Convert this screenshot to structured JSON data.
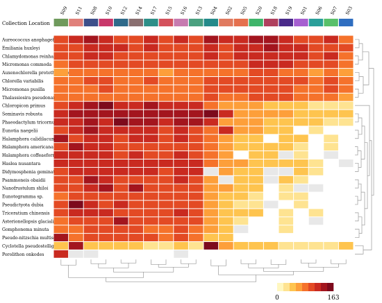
{
  "chart_data": {
    "type": "heatmap",
    "title": "",
    "annotation_row_label": "Collection Location",
    "columns": [
      "S09",
      "S11",
      "S08",
      "S10",
      "S12",
      "S14",
      "S17",
      "S15",
      "S16",
      "S13",
      "S04",
      "S02",
      "S05",
      "S20",
      "S18",
      "S19",
      "S01",
      "S06",
      "S07",
      "S03"
    ],
    "column_colors": [
      "#6f9a5c",
      "#e0807a",
      "#3d4f8a",
      "#c8386a",
      "#2f6a8a",
      "#8a6f70",
      "#2e8f88",
      "#d4515c",
      "#c77bb0",
      "#4aa07f",
      "#248a8a",
      "#e07a5f",
      "#e5704e",
      "#3fb56a",
      "#b0405e",
      "#4a2a8a",
      "#a65fd0",
      "#2a9f9a",
      "#58c06a",
      "#2f6ec0"
    ],
    "rows": [
      "Aureococcus anophagefferens",
      "Emiliania huxleyi",
      "Chlamydomonas reinhardtii",
      "Micromonas commoda",
      "Auxenochlorella protothecoides",
      "Chlorella variabilis",
      "Micromonas pusilla",
      "Thalassiosira pseudonana",
      "Chloropicon primus",
      "Seminavis robusta",
      "Phaeodactylum tricornutum",
      "Eunotia naegelii",
      "Halamphora calidilacuna",
      "Halamphora americana",
      "Halamphora coffeaeformis",
      "Haslea nusantara",
      "Didymosphenia geminata",
      "Psammoneis obaidii",
      "Nanofrustulum shiloi",
      "Eunotogramma sp.",
      "Pseudictyota dubia",
      "Triceratium chinensis",
      "Asterionellopsis glacialis",
      "Gomphonema minuta",
      "Pseudo-nitzschia multiseries",
      "Cyclotella pseudostelligera",
      "Porolithon onkodes"
    ],
    "values": [
      [
        95,
        110,
        128,
        118,
        108,
        105,
        110,
        98,
        112,
        106,
        130,
        118,
        122,
        140,
        135,
        110,
        108,
        98,
        112,
        90
      ],
      [
        100,
        105,
        115,
        118,
        110,
        108,
        112,
        100,
        108,
        105,
        115,
        108,
        112,
        120,
        128,
        118,
        112,
        100,
        108,
        92
      ],
      [
        95,
        100,
        110,
        112,
        105,
        102,
        108,
        98,
        105,
        100,
        112,
        108,
        110,
        118,
        122,
        120,
        110,
        100,
        110,
        90
      ],
      [
        90,
        92,
        100,
        102,
        98,
        95,
        100,
        92,
        98,
        95,
        108,
        102,
        105,
        110,
        115,
        110,
        102,
        95,
        100,
        85
      ],
      [
        70,
        75,
        82,
        80,
        78,
        75,
        80,
        72,
        78,
        75,
        88,
        82,
        85,
        92,
        95,
        88,
        80,
        72,
        80,
        65
      ],
      [
        82,
        85,
        92,
        95,
        90,
        88,
        92,
        85,
        90,
        88,
        100,
        95,
        98,
        105,
        108,
        102,
        92,
        85,
        95,
        78
      ],
      [
        80,
        82,
        90,
        92,
        88,
        85,
        90,
        82,
        88,
        85,
        98,
        92,
        95,
        102,
        105,
        100,
        90,
        82,
        92,
        75
      ],
      [
        78,
        80,
        88,
        85,
        82,
        80,
        85,
        78,
        82,
        80,
        95,
        88,
        90,
        98,
        102,
        95,
        85,
        78,
        85,
        72
      ],
      [
        108,
        118,
        128,
        145,
        125,
        115,
        128,
        112,
        125,
        118,
        90,
        68,
        58,
        62,
        50,
        48,
        42,
        35,
        32,
        30
      ],
      [
        118,
        128,
        140,
        135,
        130,
        142,
        138,
        128,
        135,
        140,
        152,
        125,
        68,
        72,
        62,
        58,
        50,
        42,
        40,
        38
      ],
      [
        112,
        122,
        130,
        125,
        150,
        135,
        128,
        122,
        138,
        130,
        118,
        72,
        62,
        58,
        52,
        48,
        45,
        38,
        35,
        20
      ],
      [
        100,
        115,
        140,
        118,
        112,
        120,
        115,
        108,
        115,
        108,
        82,
        125,
        58,
        55,
        48,
        52,
        0,
        28,
        0,
        0
      ],
      [
        128,
        108,
        120,
        115,
        108,
        112,
        110,
        102,
        112,
        105,
        78,
        65,
        52,
        48,
        0,
        45,
        38,
        0,
        25,
        0
      ],
      [
        102,
        128,
        112,
        110,
        105,
        108,
        105,
        98,
        108,
        102,
        75,
        62,
        48,
        45,
        42,
        40,
        35,
        0,
        22,
        0
      ],
      [
        112,
        118,
        120,
        112,
        108,
        110,
        108,
        100,
        110,
        105,
        78,
        62,
        0,
        48,
        38,
        15,
        30,
        0,
        12,
        0
      ],
      [
        115,
        110,
        118,
        122,
        112,
        120,
        118,
        110,
        122,
        115,
        85,
        68,
        55,
        52,
        45,
        42,
        38,
        28,
        0,
        12
      ],
      [
        108,
        112,
        118,
        115,
        110,
        112,
        112,
        105,
        118,
        112,
        15,
        62,
        50,
        45,
        18,
        15,
        38,
        22,
        0,
        0
      ],
      [
        100,
        105,
        140,
        110,
        102,
        108,
        108,
        100,
        112,
        105,
        70,
        12,
        45,
        40,
        15,
        38,
        35,
        0,
        0,
        0
      ],
      [
        95,
        102,
        112,
        128,
        98,
        130,
        105,
        98,
        108,
        102,
        65,
        55,
        42,
        38,
        0,
        35,
        15,
        12,
        0,
        0
      ],
      [
        90,
        98,
        108,
        105,
        95,
        102,
        102,
        95,
        105,
        98,
        62,
        50,
        38,
        35,
        0,
        32,
        28,
        0,
        0,
        0
      ],
      [
        92,
        160,
        110,
        105,
        112,
        100,
        98,
        92,
        102,
        95,
        58,
        48,
        35,
        32,
        15,
        0,
        30,
        0,
        0,
        0
      ],
      [
        102,
        112,
        120,
        110,
        98,
        105,
        100,
        95,
        110,
        100,
        65,
        52,
        40,
        38,
        0,
        35,
        0,
        25,
        0,
        0
      ],
      [
        88,
        95,
        100,
        98,
        128,
        100,
        95,
        92,
        100,
        95,
        58,
        45,
        35,
        0,
        0,
        30,
        0,
        15,
        0,
        0
      ],
      [
        82,
        90,
        95,
        92,
        98,
        95,
        90,
        88,
        95,
        90,
        55,
        42,
        15,
        0,
        0,
        28,
        0,
        0,
        0,
        0
      ],
      [
        140,
        85,
        102,
        98,
        92,
        98,
        92,
        85,
        95,
        88,
        52,
        40,
        0,
        0,
        0,
        0,
        0,
        0,
        0,
        0
      ],
      [
        45,
        130,
        48,
        42,
        38,
        40,
        35,
        32,
        38,
        35,
        145,
        55,
        40,
        42,
        38,
        35,
        32,
        30,
        30,
        42
      ],
      [
        110,
        15,
        15,
        0,
        0,
        0,
        0,
        0,
        15,
        0,
        0,
        0,
        0,
        0,
        0,
        0,
        0,
        0,
        0,
        0
      ]
    ],
    "scale": {
      "min": 0,
      "max": 163,
      "min_label": "0",
      "max_label": "163"
    },
    "colorscale": [
      "#ffffff",
      "#fff7c0",
      "#fee391",
      "#fec44f",
      "#fd9f3a",
      "#f5722b",
      "#e34a24",
      "#c92a20",
      "#a3151e",
      "#7d0a1c"
    ],
    "zero_color": "#ffffff",
    "low_color": "#e8e8e8",
    "legend_placement": "bottom-right"
  }
}
